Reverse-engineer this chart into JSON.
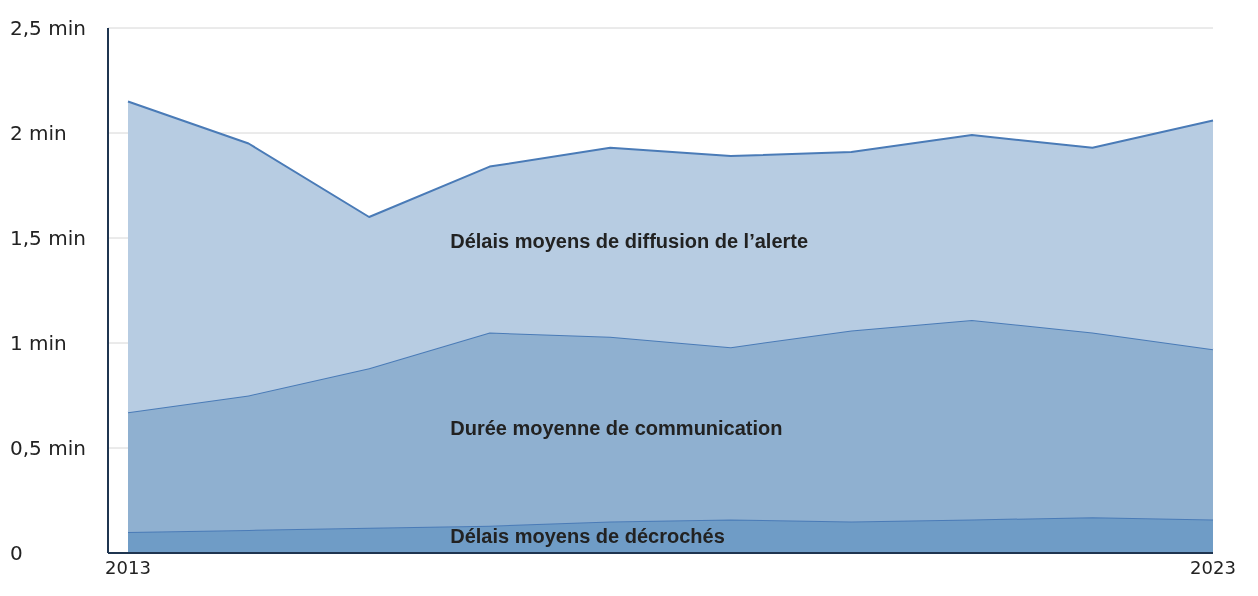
{
  "chart_data": {
    "type": "area",
    "stacked": true,
    "categories": [
      "2013",
      null,
      null,
      null,
      null,
      null,
      null,
      null,
      null,
      "2023"
    ],
    "series": [
      {
        "name": "Délais moyens de décrochés",
        "color": "#6f9cc6",
        "values": [
          0.1,
          0.11,
          0.12,
          0.13,
          0.15,
          0.16,
          0.15,
          0.16,
          0.17,
          0.16
        ]
      },
      {
        "name": "Durée moyenne de communication",
        "color": "#8fb0d0",
        "values": [
          0.57,
          0.64,
          0.76,
          0.92,
          0.88,
          0.82,
          0.91,
          0.95,
          0.88,
          0.81
        ]
      },
      {
        "name": "Délais moyens de diffusion de l’alerte",
        "color": "#b7cce2",
        "values": [
          1.48,
          1.2,
          0.72,
          0.79,
          0.9,
          0.91,
          0.85,
          0.88,
          0.88,
          1.09
        ]
      }
    ],
    "ylim": [
      0,
      2.5
    ],
    "yticks": [
      {
        "value": 0,
        "label": "0"
      },
      {
        "value": 0.5,
        "label": "0,5 min"
      },
      {
        "value": 1,
        "label": "1 min"
      },
      {
        "value": 1.5,
        "label": "1,5 min"
      },
      {
        "value": 2,
        "label": "2 min"
      },
      {
        "value": 2.5,
        "label": "2,5 min"
      }
    ],
    "grid": "y",
    "legend": false
  }
}
